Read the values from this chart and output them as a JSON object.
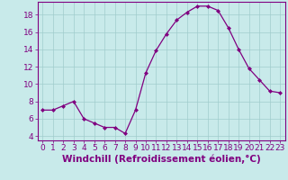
{
  "x": [
    0,
    1,
    2,
    3,
    4,
    5,
    6,
    7,
    8,
    9,
    10,
    11,
    12,
    13,
    14,
    15,
    16,
    17,
    18,
    19,
    20,
    21,
    22,
    23
  ],
  "y": [
    7.0,
    7.0,
    7.5,
    8.0,
    6.0,
    5.5,
    5.0,
    5.0,
    4.3,
    7.0,
    11.3,
    13.9,
    15.8,
    17.4,
    18.3,
    19.0,
    19.0,
    18.5,
    16.5,
    14.0,
    11.8,
    10.5,
    9.2,
    9.0
  ],
  "line_color": "#800080",
  "marker": "D",
  "marker_size": 2.0,
  "bg_color": "#c8eaea",
  "grid_color": "#a0cccc",
  "xlabel": "Windchill (Refroidissement éolien,°C)",
  "xlim": [
    -0.5,
    23.5
  ],
  "ylim": [
    3.5,
    19.5
  ],
  "yticks": [
    4,
    6,
    8,
    10,
    12,
    14,
    16,
    18
  ],
  "xticks": [
    0,
    1,
    2,
    3,
    4,
    5,
    6,
    7,
    8,
    9,
    10,
    11,
    12,
    13,
    14,
    15,
    16,
    17,
    18,
    19,
    20,
    21,
    22,
    23
  ],
  "tick_color": "#800080",
  "label_color": "#800080",
  "spine_color": "#800080",
  "xlabel_fontsize": 7.5,
  "tick_fontsize": 6.5
}
